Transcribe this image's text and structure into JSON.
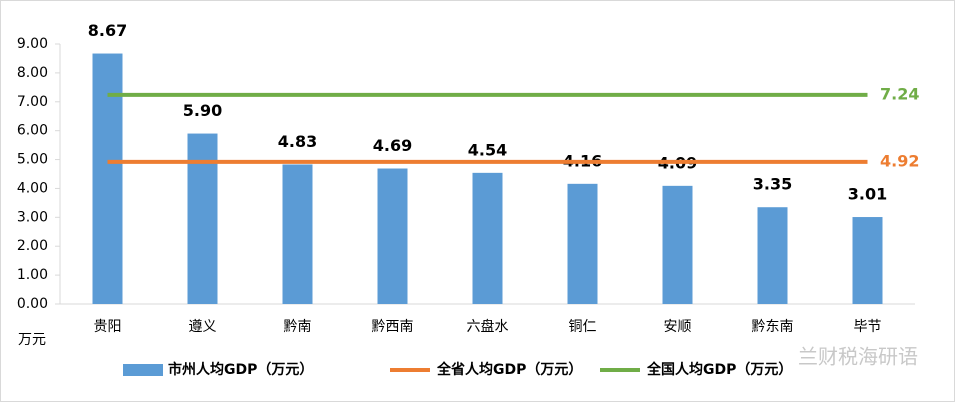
{
  "chart_data": {
    "type": "bar",
    "y_unit": "万元",
    "categories": [
      "贵阳",
      "遵义",
      "黔南",
      "黔西南",
      "六盘水",
      "铜仁",
      "安顺",
      "黔东南",
      "毕节"
    ],
    "series": [
      {
        "name": "市州人均GDP（万元）",
        "color": "#5b9bd5",
        "values": [
          8.67,
          5.9,
          4.83,
          4.69,
          4.54,
          4.16,
          4.09,
          3.35,
          3.01
        ],
        "value_labels": [
          "8.67",
          "5.90",
          "4.83",
          "4.69",
          "4.54",
          "4.16",
          "4.09",
          "3.35",
          "3.01"
        ]
      }
    ],
    "reference_lines": [
      {
        "name": "全省人均GDP（万元）",
        "color": "#ed7d31",
        "value": 4.92,
        "value_label": "4.92"
      },
      {
        "name": "全国人均GDP（万元）",
        "color": "#70ad47",
        "value": 7.24,
        "value_label": "7.24"
      }
    ],
    "ylim": [
      0,
      9
    ],
    "yticks": [
      {
        "value": 0,
        "label": "0.00"
      },
      {
        "value": 1,
        "label": "1.00"
      },
      {
        "value": 2,
        "label": "2.00"
      },
      {
        "value": 3,
        "label": "3.00"
      },
      {
        "value": 4,
        "label": "4.00"
      },
      {
        "value": 5,
        "label": "5.00"
      },
      {
        "value": 6,
        "label": "6.00"
      },
      {
        "value": 7,
        "label": "7.00"
      },
      {
        "value": 8,
        "label": "8.00"
      },
      {
        "value": 9,
        "label": "9.00"
      }
    ],
    "grid": false,
    "legend": "bottom",
    "watermark": "兰财税海研语"
  }
}
